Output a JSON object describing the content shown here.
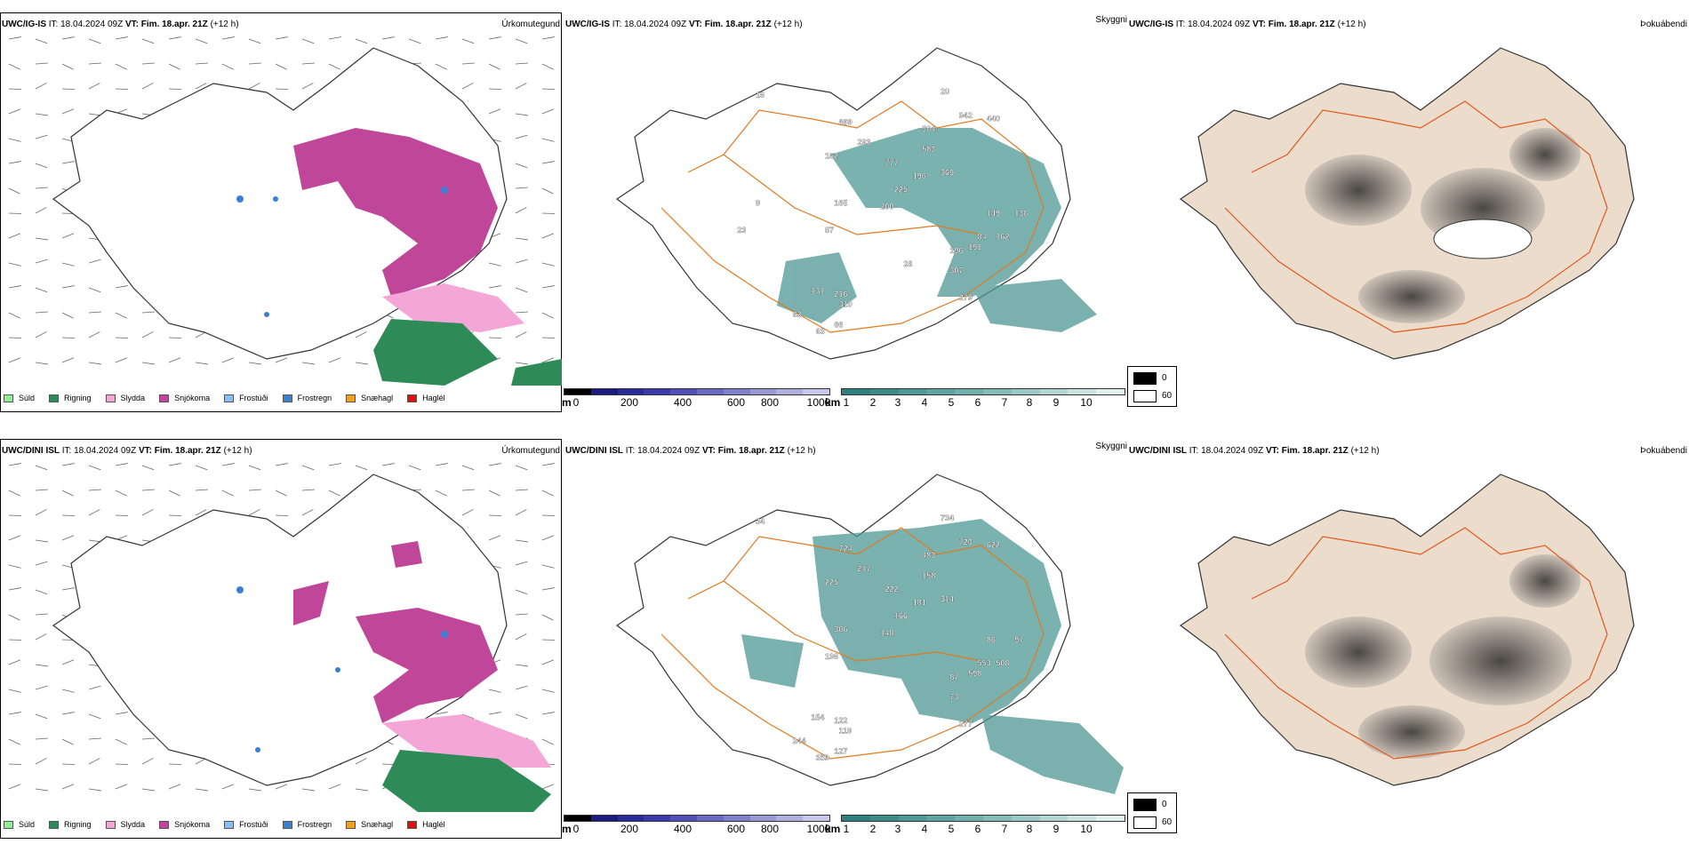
{
  "rows": [
    {
      "precip": {
        "model": "UWC/IG-IS",
        "it_label": "IT:",
        "it": "18.04.2024 09Z",
        "vt_label": "VT:",
        "vt": "Fim. 18.apr. 21Z",
        "lead": "(+12 h)",
        "title": "Úrkomutegund"
      },
      "cloud": {
        "model": "UWC/IG-IS",
        "it_label": "IT:",
        "it": "18.04.2024 09Z",
        "vt_label": "VT:",
        "vt": "Fim. 18.apr. 21Z",
        "lead": "(+12 h)",
        "title": "Skyggni"
      },
      "fog": {
        "model": "UWC/IG-IS",
        "it_label": "IT:",
        "it": "18.04.2024 09Z",
        "vt_label": "VT:",
        "vt": "Fim. 18.apr. 21Z",
        "lead": "(+12 h)",
        "title": "Þokuábendi"
      },
      "cloud_labels": [
        "16",
        "869",
        "293",
        "162",
        "777",
        "304",
        "942",
        "440",
        "20",
        "583",
        "369",
        "196",
        "225",
        "165",
        "200",
        "87",
        "131",
        "216",
        "63",
        "310",
        "66",
        "63",
        "196",
        "191",
        "307",
        "149",
        "136",
        "162",
        "84",
        "279",
        "28",
        "9",
        "23"
      ]
    },
    {
      "precip": {
        "model": "UWC/DINI ISL",
        "it_label": "IT:",
        "it": "18.04.2024 09Z",
        "vt_label": "VT:",
        "vt": "Fim. 18.apr. 21Z",
        "lead": "(+12 h)",
        "title": "Úrkomutegund"
      },
      "cloud": {
        "model": "UWC/DINI ISL",
        "it_label": "IT:",
        "it": "18.04.2024 09Z",
        "vt_label": "VT:",
        "vt": "Fim. 18.apr. 21Z",
        "lead": "(+12 h)",
        "title": "Skyggni"
      },
      "fog": {
        "model": "UWC/DINI ISL",
        "it_label": "IT:",
        "it": "18.04.2024 09Z",
        "vt_label": "VT:",
        "vt": "Fim. 18.apr. 21Z",
        "lead": "(+12 h)",
        "title": "Þokuábendi"
      },
      "cloud_labels": [
        "34",
        "724",
        "247",
        "225",
        "222",
        "483",
        "720",
        "622",
        "734",
        "158",
        "314",
        "181",
        "166",
        "306",
        "148",
        "196",
        "154",
        "122",
        "244",
        "119",
        "127",
        "359",
        "87",
        "598",
        "73",
        "86",
        "97",
        "508",
        "553",
        "277"
      ]
    }
  ],
  "precip_legend": [
    {
      "label": "Súld",
      "color": "#90ee90"
    },
    {
      "label": "Rigning",
      "color": "#2e8b57"
    },
    {
      "label": "Slydda",
      "color": "#f4a6d7"
    },
    {
      "label": "Snjókoma",
      "color": "#c0469a"
    },
    {
      "label": "Frostúði",
      "color": "#87bfff"
    },
    {
      "label": "Frostregn",
      "color": "#3a7fd5"
    },
    {
      "label": "Snæhagl",
      "color": "#f0a020"
    },
    {
      "label": "Haglél",
      "color": "#e01010"
    }
  ],
  "height_scale": {
    "unit": "m",
    "ticks": [
      "0",
      "200",
      "400",
      "600",
      "800",
      "1000"
    ],
    "colors": [
      "#000000",
      "#1a1a80",
      "#2a2a9a",
      "#3a3aae",
      "#5050b8",
      "#6a6ac4",
      "#8080cc",
      "#9898d4",
      "#b0b0de",
      "#c8c8e8"
    ]
  },
  "vis_scale": {
    "unit": "km",
    "ticks": [
      "1",
      "2",
      "3",
      "4",
      "5",
      "6",
      "7",
      "8",
      "9",
      "10"
    ],
    "colors": [
      "#2f7f7f",
      "#3d8c8a",
      "#4e9895",
      "#5fa4a0",
      "#72b0ac",
      "#86bcb8",
      "#9cc9c5",
      "#b3d6d2",
      "#cae3e0",
      "#e2f0ee"
    ]
  },
  "fog_legend": [
    {
      "label": "0",
      "color": "#000000"
    },
    {
      "label": "60",
      "color": "#ffffff"
    }
  ]
}
